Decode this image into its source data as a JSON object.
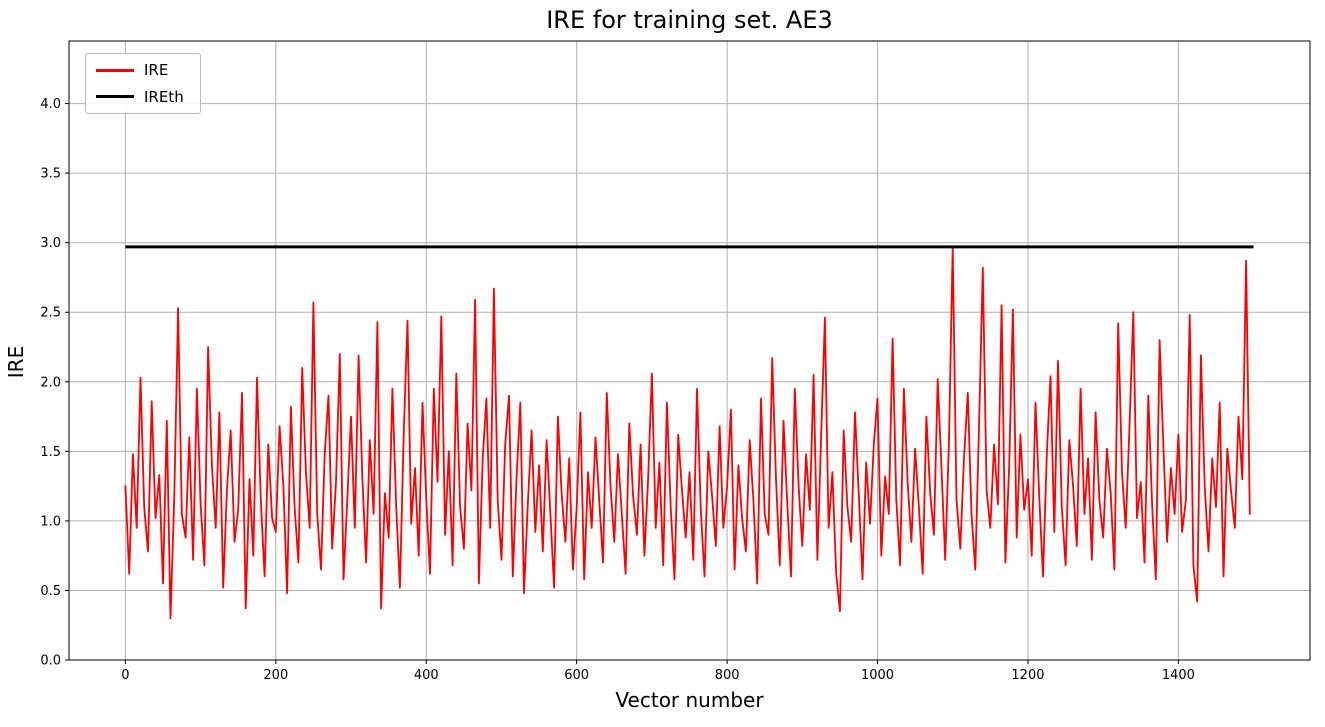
{
  "chart_data": {
    "type": "line",
    "title": "IRE for training set. AE3",
    "xlabel": "Vector number",
    "ylabel": "IRE",
    "grid": true,
    "legend_position": "upper left",
    "legend": [
      {
        "label": "IRE",
        "color": "#ff0000"
      },
      {
        "label": "IREth",
        "color": "#000000"
      }
    ],
    "xlim": [
      -75,
      1575
    ],
    "ylim": [
      0,
      4.45
    ],
    "xticks": [
      0,
      200,
      400,
      600,
      800,
      1000,
      1200,
      1400
    ],
    "xticklabels": [
      "0",
      "200",
      "400",
      "600",
      "800",
      "1000",
      "1200",
      "1400"
    ],
    "yticks": [
      0.0,
      0.5,
      1.0,
      1.5,
      2.0,
      2.5,
      3.0,
      3.5,
      4.0
    ],
    "yticklabels": [
      "0.0",
      "0.5",
      "1.0",
      "1.5",
      "2.0",
      "2.5",
      "3.0",
      "3.5",
      "4.0"
    ],
    "threshold": {
      "name": "IREth",
      "value": 2.97,
      "x_start": 0,
      "x_end": 1500,
      "color": "#000000",
      "linewidth": 3
    },
    "series": [
      {
        "name": "IRE",
        "color": "#ff0000",
        "linewidth": 1.8,
        "x_start": 0,
        "x_step": 5,
        "y": [
          1.25,
          0.62,
          1.48,
          0.95,
          2.03,
          1.1,
          0.78,
          1.86,
          1.02,
          1.33,
          0.55,
          1.72,
          0.3,
          1.18,
          2.53,
          1.05,
          0.88,
          1.6,
          0.72,
          1.95,
          1.12,
          0.68,
          2.25,
          1.4,
          0.95,
          1.78,
          0.52,
          1.22,
          1.65,
          0.85,
          1.08,
          1.92,
          0.37,
          1.3,
          0.75,
          2.03,
          1.15,
          0.6,
          1.55,
          1.02,
          0.92,
          1.68,
          1.25,
          0.48,
          1.82,
          1.1,
          0.7,
          2.1,
          1.35,
          0.95,
          2.57,
          1.05,
          0.65,
          1.48,
          1.9,
          0.8,
          1.28,
          2.2,
          0.58,
          1.15,
          1.75,
          0.95,
          2.19,
          1.32,
          0.7,
          1.58,
          1.05,
          2.43,
          0.37,
          1.2,
          0.88,
          1.95,
          1.1,
          0.52,
          1.62,
          2.44,
          0.98,
          1.38,
          0.75,
          1.85,
          1.15,
          0.62,
          1.95,
          1.28,
          2.47,
          0.9,
          1.5,
          0.68,
          2.06,
          1.1,
          0.8,
          1.7,
          1.22,
          2.59,
          0.55,
          1.45,
          1.88,
          0.95,
          2.67,
          1.15,
          0.72,
          1.55,
          1.9,
          0.6,
          1.3,
          1.85,
          0.48,
          1.12,
          1.65,
          0.92,
          1.4,
          0.78,
          1.58,
          1.05,
          0.52,
          1.75,
          1.2,
          0.85,
          1.45,
          0.65,
          1.1,
          1.78,
          0.58,
          1.35,
          0.95,
          1.6,
          1.15,
          0.7,
          1.92,
          1.25,
          0.85,
          1.48,
          1.05,
          0.62,
          1.7,
          1.18,
          0.9,
          1.55,
          0.75,
          1.3,
          2.06,
          0.95,
          1.42,
          0.68,
          1.85,
          1.1,
          0.58,
          1.62,
          1.22,
          0.88,
          1.35,
          0.72,
          1.95,
          1.08,
          0.6,
          1.5,
          1.18,
          0.82,
          1.68,
          0.95,
          1.25,
          1.8,
          0.65,
          1.4,
          1.02,
          0.78,
          1.58,
          1.15,
          0.55,
          1.88,
          1.05,
          0.9,
          2.17,
          1.3,
          0.68,
          1.72,
          1.12,
          0.6,
          1.95,
          1.25,
          0.82,
          1.48,
          1.08,
          2.05,
          0.72,
          1.6,
          2.46,
          0.95,
          1.35,
          0.62,
          0.35,
          1.65,
          1.1,
          0.85,
          1.78,
          1.2,
          0.58,
          1.42,
          0.98,
          1.55,
          1.88,
          0.75,
          1.32,
          1.05,
          2.31,
          1.15,
          0.68,
          1.95,
          1.28,
          0.85,
          1.52,
          1.1,
          0.62,
          1.75,
          1.2,
          0.9,
          2.02,
          1.38,
          0.72,
          1.58,
          2.97,
          1.15,
          0.8,
          1.45,
          1.92,
          1.05,
          0.65,
          1.7,
          2.82,
          1.22,
          0.95,
          1.55,
          1.12,
          2.55,
          0.7,
          1.4,
          2.52,
          0.88,
          1.62,
          1.08,
          1.3,
          0.75,
          1.85,
          1.18,
          0.6,
          1.48,
          2.04,
          0.92,
          2.15,
          1.1,
          0.68,
          1.58,
          1.25,
          0.82,
          1.95,
          1.05,
          1.45,
          0.72,
          1.78,
          1.15,
          0.88,
          1.52,
          1.2,
          0.65,
          2.42,
          1.35,
          0.95,
          1.68,
          2.5,
          1.02,
          1.28,
          0.7,
          1.9,
          1.12,
          0.58,
          2.3,
          1.55,
          0.85,
          1.38,
          1.05,
          1.62,
          0.92,
          1.15,
          2.48,
          0.68,
          0.42,
          2.19,
          1.25,
          0.78,
          1.45,
          1.1,
          1.85,
          0.6,
          1.52,
          1.22,
          0.95,
          1.75,
          1.3,
          2.87,
          1.05
        ]
      }
    ],
    "style": {
      "grid_color": "#b0b0b0",
      "spine_color": "#000000",
      "background": "#ffffff"
    }
  }
}
